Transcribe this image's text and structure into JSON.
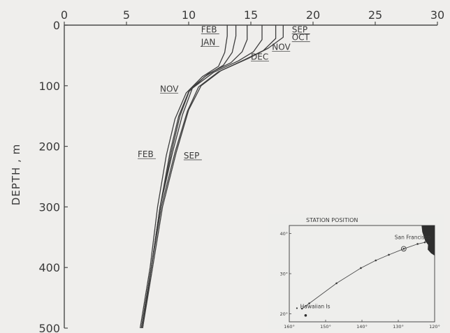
{
  "chart_data": {
    "type": "line",
    "title": "",
    "xlabel": "",
    "ylabel": "DEPTH , m",
    "x_axis_position": "top",
    "y_inverted": true,
    "xlim": [
      0,
      30
    ],
    "ylim": [
      0,
      500
    ],
    "x_ticks": [
      "0",
      "5",
      "10",
      "15",
      "20",
      "25",
      "30"
    ],
    "y_ticks": [
      "0",
      "100",
      "200",
      "300",
      "400",
      "500"
    ],
    "grid": false,
    "series": [
      {
        "name": "JAN",
        "points": [
          [
            13.8,
            0
          ],
          [
            13.8,
            18
          ],
          [
            13.5,
            45
          ],
          [
            12.8,
            66
          ],
          [
            11.3,
            85
          ],
          [
            10.0,
            110
          ],
          [
            9.2,
            150
          ],
          [
            8.5,
            210
          ],
          [
            7.7,
            300
          ],
          [
            7.0,
            400
          ],
          [
            6.3,
            500
          ]
        ]
      },
      {
        "name": "FEB",
        "points": [
          [
            13.1,
            0
          ],
          [
            13.1,
            18
          ],
          [
            12.9,
            45
          ],
          [
            12.4,
            68
          ],
          [
            11.1,
            85
          ],
          [
            9.8,
            112
          ],
          [
            8.9,
            155
          ],
          [
            8.2,
            215
          ],
          [
            7.5,
            300
          ],
          [
            6.9,
            400
          ],
          [
            6.1,
            500
          ]
        ]
      },
      {
        "name": "SEP",
        "points": [
          [
            17.6,
            0
          ],
          [
            17.6,
            20
          ],
          [
            16.4,
            38
          ],
          [
            14.8,
            55
          ],
          [
            12.6,
            75
          ],
          [
            11.0,
            100
          ],
          [
            10.0,
            140
          ],
          [
            9.0,
            210
          ],
          [
            7.9,
            300
          ],
          [
            7.1,
            400
          ],
          [
            6.3,
            500
          ]
        ]
      },
      {
        "name": "OCT",
        "points": [
          [
            17.0,
            0
          ],
          [
            17.0,
            22
          ],
          [
            16.0,
            42
          ],
          [
            14.5,
            57
          ],
          [
            12.4,
            77
          ],
          [
            10.8,
            102
          ],
          [
            9.9,
            142
          ],
          [
            8.9,
            210
          ],
          [
            7.8,
            300
          ],
          [
            7.0,
            400
          ],
          [
            6.2,
            500
          ]
        ]
      },
      {
        "name": "NOV",
        "points": [
          [
            15.9,
            0
          ],
          [
            15.9,
            24
          ],
          [
            15.2,
            44
          ],
          [
            14.0,
            59
          ],
          [
            12.0,
            78
          ],
          [
            10.3,
            104
          ],
          [
            9.5,
            148
          ],
          [
            8.7,
            210
          ],
          [
            7.7,
            300
          ],
          [
            7.0,
            400
          ],
          [
            6.2,
            500
          ]
        ]
      },
      {
        "name": "DEC",
        "points": [
          [
            14.7,
            0
          ],
          [
            14.7,
            24
          ],
          [
            14.3,
            44
          ],
          [
            13.4,
            62
          ],
          [
            11.6,
            80
          ],
          [
            10.1,
            106
          ],
          [
            9.3,
            150
          ],
          [
            8.6,
            210
          ],
          [
            7.7,
            300
          ],
          [
            7.0,
            400
          ],
          [
            6.2,
            500
          ]
        ]
      }
    ],
    "annotations": [
      {
        "text": "FEB",
        "x": 11.0,
        "y": 12
      },
      {
        "text": "JAN",
        "x": 11.0,
        "y": 33
      },
      {
        "text": "SEP",
        "x": 18.3,
        "y": 12
      },
      {
        "text": "OCT",
        "x": 18.3,
        "y": 25
      },
      {
        "text": "NOV",
        "x": 16.7,
        "y": 41
      },
      {
        "text": "DEC",
        "x": 15.0,
        "y": 57
      },
      {
        "text": "NOV",
        "x": 7.7,
        "y": 110
      },
      {
        "text": "FEB",
        "x": 5.9,
        "y": 218
      },
      {
        "text": "SEP",
        "x": 9.6,
        "y": 220
      }
    ],
    "inset": {
      "title": "STATION POSITION",
      "x_ticks": [
        "160°",
        "150°",
        "140°",
        "130°",
        "120°"
      ],
      "y_ticks": [
        "40°",
        "30°",
        "20°"
      ],
      "xlim": [
        -160,
        -120
      ],
      "ylim": [
        18,
        42
      ],
      "track": [
        [
          -156.5,
          21.3
        ],
        [
          -154.5,
          22.6
        ],
        [
          -147.0,
          27.6
        ],
        [
          -140.3,
          31.4
        ],
        [
          -136.2,
          33.3
        ],
        [
          -132.6,
          34.7
        ],
        [
          -128.5,
          36.2
        ],
        [
          -124.7,
          37.4
        ],
        [
          -122.7,
          37.8
        ]
      ],
      "station_marker": [
        -128.5,
        36.2
      ],
      "places": [
        {
          "text": "San Francisco",
          "x": -131.0,
          "y": 38.6
        },
        {
          "text": "Hawaiian Is",
          "x": -157.0,
          "y": 21.4
        }
      ],
      "coast": [
        [
          -123.6,
          42
        ],
        [
          -123.4,
          40.4
        ],
        [
          -123.0,
          39.3
        ],
        [
          -122.6,
          38.1
        ],
        [
          -121.8,
          37.2
        ],
        [
          -121.9,
          36.0
        ],
        [
          -121.0,
          35.1
        ],
        [
          -120.0,
          34.5
        ],
        [
          -120.0,
          42
        ]
      ]
    }
  }
}
